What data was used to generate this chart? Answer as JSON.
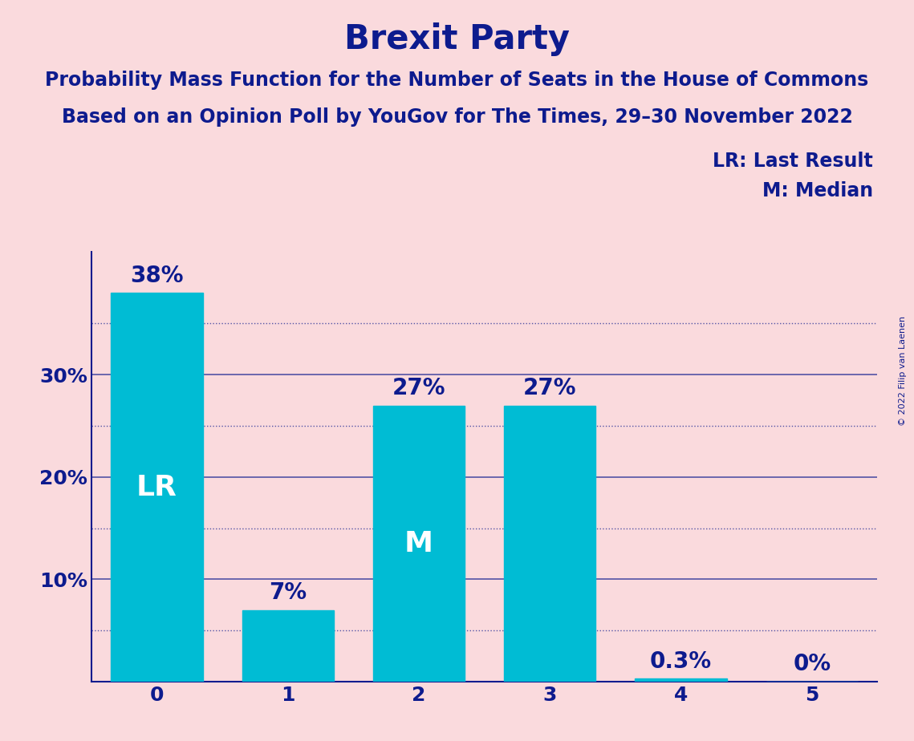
{
  "title": "Brexit Party",
  "subtitle1": "Probability Mass Function for the Number of Seats in the House of Commons",
  "subtitle2": "Based on an Opinion Poll by YouGov for The Times, 29–30 November 2022",
  "copyright": "© 2022 Filip van Laenen",
  "legend_lr": "LR: Last Result",
  "legend_m": "M: Median",
  "categories": [
    0,
    1,
    2,
    3,
    4,
    5
  ],
  "values": [
    38,
    7,
    27,
    27,
    0.3,
    0
  ],
  "bar_labels": [
    "38%",
    "7%",
    "27%",
    "27%",
    "0.3%",
    "0%"
  ],
  "bar_label_above_threshold": 0,
  "bar_color": "#00BCD4",
  "background_color": "#FADADD",
  "text_color": "#0D1B8E",
  "bar_label_color_outside": "#0D1B8E",
  "bar_label_color_inside": "#FFFFFF",
  "lr_bar_index": 0,
  "median_bar_index": 2,
  "ylim_max": 42,
  "yticks": [
    10,
    20,
    30
  ],
  "ytick_labels": [
    "10%",
    "20%",
    "30%"
  ],
  "grid_color": "#0D1B8E",
  "solid_grid_values": [
    10,
    20,
    30
  ],
  "dotted_grid_values": [
    5,
    15,
    25,
    35
  ],
  "title_fontsize": 30,
  "subtitle_fontsize": 17,
  "bar_label_fontsize": 20,
  "lr_m_fontsize": 26,
  "tick_fontsize": 18,
  "legend_fontsize": 17,
  "copyright_fontsize": 8,
  "bar_width": 0.7,
  "figsize": [
    11.39,
    9.24
  ],
  "dpi": 100
}
